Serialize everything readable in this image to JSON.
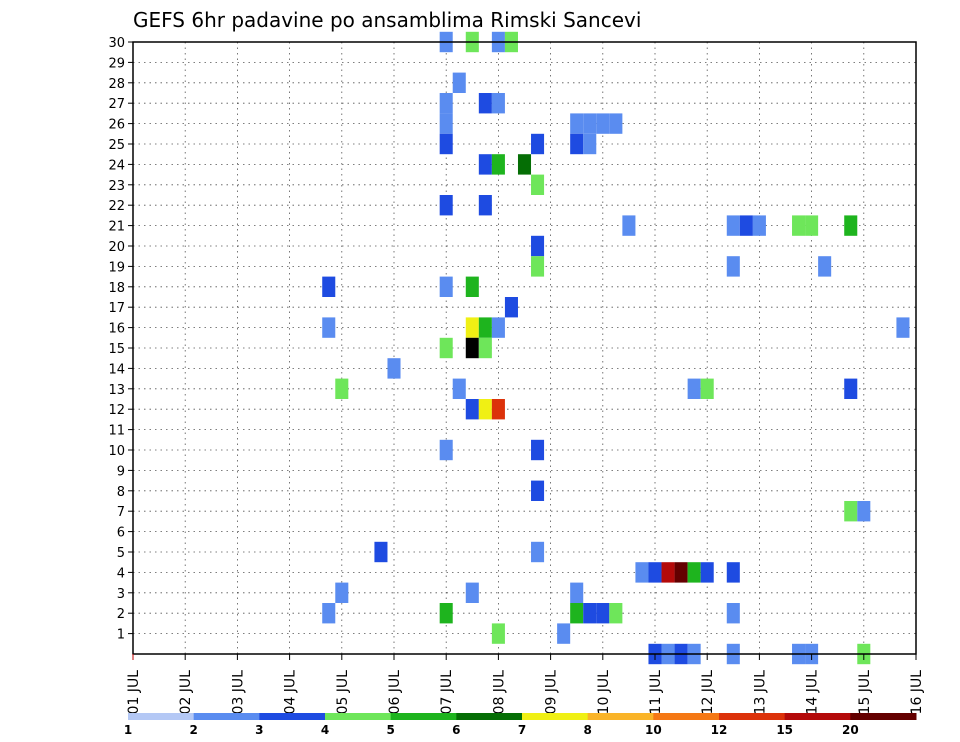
{
  "chart_data": {
    "type": "heatmap",
    "title": "GEFS 6hr padavine po ansamblima Rimski Sancevi",
    "x_tick_labels": [
      "01 JUL",
      "02 JUL",
      "03 JUL",
      "04 JUL",
      "05 JUL",
      "06 JUL",
      "07 JUL",
      "08 JUL",
      "09 JUL",
      "10 JUL",
      "11 JUL",
      "12 JUL",
      "13 JUL",
      "14 JUL",
      "15 JUL",
      "16 JUL"
    ],
    "xlim": [
      1,
      16
    ],
    "y_tick_labels": [
      "1",
      "2",
      "3",
      "4",
      "5",
      "6",
      "7",
      "8",
      "9",
      "10",
      "11",
      "12",
      "13",
      "14",
      "15",
      "16",
      "17",
      "18",
      "19",
      "20",
      "21",
      "22",
      "23",
      "24",
      "25",
      "26",
      "27",
      "28",
      "29",
      "30"
    ],
    "ylim": [
      0,
      30
    ],
    "grid": true,
    "colorbar": {
      "labels": [
        "1",
        "2",
        "3",
        "4",
        "5",
        "6",
        "7",
        "8",
        "10",
        "12",
        "15",
        "20"
      ],
      "colors": [
        "#b4c8f5",
        "#5a8cf0",
        "#1e4be1",
        "#6ee65a",
        "#1eb41e",
        "#056e05",
        "#f0f014",
        "#fab428",
        "#f57814",
        "#dc320a",
        "#b40a0a",
        "#640000"
      ]
    },
    "cells": [
      {
        "t": 7.0,
        "m": 30,
        "v": 1
      },
      {
        "t": 7.5,
        "m": 30,
        "v": 3
      },
      {
        "t": 8.0,
        "m": 30,
        "v": 1
      },
      {
        "t": 8.25,
        "m": 30,
        "v": 3
      },
      {
        "t": 7.25,
        "m": 28,
        "v": 1
      },
      {
        "t": 7.0,
        "m": 27,
        "v": 1
      },
      {
        "t": 7.75,
        "m": 27,
        "v": 2
      },
      {
        "t": 8.0,
        "m": 27,
        "v": 1
      },
      {
        "t": 7.0,
        "m": 26,
        "v": 1
      },
      {
        "t": 9.5,
        "m": 26,
        "v": 1
      },
      {
        "t": 9.75,
        "m": 26,
        "v": 1
      },
      {
        "t": 10.0,
        "m": 26,
        "v": 1
      },
      {
        "t": 10.25,
        "m": 26,
        "v": 1
      },
      {
        "t": 7.0,
        "m": 25,
        "v": 2
      },
      {
        "t": 8.75,
        "m": 25,
        "v": 2
      },
      {
        "t": 9.5,
        "m": 25,
        "v": 2
      },
      {
        "t": 9.75,
        "m": 25,
        "v": 1
      },
      {
        "t": 7.75,
        "m": 24,
        "v": 2
      },
      {
        "t": 8.0,
        "m": 24,
        "v": 4
      },
      {
        "t": 8.5,
        "m": 24,
        "v": 5
      },
      {
        "t": 8.75,
        "m": 23,
        "v": 3
      },
      {
        "t": 7.0,
        "m": 22,
        "v": 2
      },
      {
        "t": 7.75,
        "m": 22,
        "v": 2
      },
      {
        "t": 10.5,
        "m": 21,
        "v": 1
      },
      {
        "t": 12.5,
        "m": 21,
        "v": 1
      },
      {
        "t": 12.75,
        "m": 21,
        "v": 2
      },
      {
        "t": 13.0,
        "m": 21,
        "v": 1
      },
      {
        "t": 13.75,
        "m": 21,
        "v": 3
      },
      {
        "t": 14.0,
        "m": 21,
        "v": 3
      },
      {
        "t": 14.75,
        "m": 21,
        "v": 4
      },
      {
        "t": 8.75,
        "m": 20,
        "v": 2
      },
      {
        "t": 8.75,
        "m": 19,
        "v": 3
      },
      {
        "t": 12.5,
        "m": 19,
        "v": 1
      },
      {
        "t": 14.25,
        "m": 19,
        "v": 1
      },
      {
        "t": 4.75,
        "m": 18,
        "v": 2
      },
      {
        "t": 7.0,
        "m": 18,
        "v": 1
      },
      {
        "t": 7.5,
        "m": 18,
        "v": 4
      },
      {
        "t": 8.25,
        "m": 17,
        "v": 2
      },
      {
        "t": 4.75,
        "m": 16,
        "v": 1
      },
      {
        "t": 7.5,
        "m": 16,
        "v": 6
      },
      {
        "t": 7.75,
        "m": 16,
        "v": 4
      },
      {
        "t": 8.0,
        "m": 16,
        "v": 1
      },
      {
        "t": 15.75,
        "m": 16,
        "v": 1
      },
      {
        "t": 7.0,
        "m": 15,
        "v": 3
      },
      {
        "t": 7.5,
        "m": 15,
        "v": 12
      },
      {
        "t": 7.75,
        "m": 15,
        "v": 3
      },
      {
        "t": 6.0,
        "m": 14,
        "v": 1
      },
      {
        "t": 5.0,
        "m": 13,
        "v": 3
      },
      {
        "t": 7.25,
        "m": 13,
        "v": 1
      },
      {
        "t": 11.75,
        "m": 13,
        "v": 1
      },
      {
        "t": 12.0,
        "m": 13,
        "v": 3
      },
      {
        "t": 14.75,
        "m": 13,
        "v": 2
      },
      {
        "t": 7.5,
        "m": 12,
        "v": 2
      },
      {
        "t": 7.75,
        "m": 12,
        "v": 6
      },
      {
        "t": 8.0,
        "m": 12,
        "v": 9
      },
      {
        "t": 7.0,
        "m": 10,
        "v": 1
      },
      {
        "t": 8.75,
        "m": 10,
        "v": 2
      },
      {
        "t": 8.75,
        "m": 8,
        "v": 2
      },
      {
        "t": 14.75,
        "m": 7,
        "v": 3
      },
      {
        "t": 15.0,
        "m": 7,
        "v": 1
      },
      {
        "t": 5.75,
        "m": 5,
        "v": 2
      },
      {
        "t": 8.75,
        "m": 5,
        "v": 1
      },
      {
        "t": 10.75,
        "m": 4,
        "v": 1
      },
      {
        "t": 11.0,
        "m": 4,
        "v": 2
      },
      {
        "t": 11.25,
        "m": 4,
        "v": 10
      },
      {
        "t": 11.5,
        "m": 4,
        "v": 11
      },
      {
        "t": 11.75,
        "m": 4,
        "v": 4
      },
      {
        "t": 12.0,
        "m": 4,
        "v": 2
      },
      {
        "t": 12.5,
        "m": 4,
        "v": 2
      },
      {
        "t": 5.0,
        "m": 3,
        "v": 1
      },
      {
        "t": 7.5,
        "m": 3,
        "v": 1
      },
      {
        "t": 9.5,
        "m": 3,
        "v": 1
      },
      {
        "t": 4.75,
        "m": 2,
        "v": 1
      },
      {
        "t": 7.0,
        "m": 2,
        "v": 4
      },
      {
        "t": 9.5,
        "m": 2,
        "v": 4
      },
      {
        "t": 9.75,
        "m": 2,
        "v": 2
      },
      {
        "t": 10.0,
        "m": 2,
        "v": 2
      },
      {
        "t": 10.25,
        "m": 2,
        "v": 3
      },
      {
        "t": 12.5,
        "m": 2,
        "v": 1
      },
      {
        "t": 8.0,
        "m": 1,
        "v": 3
      },
      {
        "t": 9.25,
        "m": 1,
        "v": 1
      },
      {
        "t": 11.0,
        "m": 0,
        "v": 2
      },
      {
        "t": 11.25,
        "m": 0,
        "v": 1
      },
      {
        "t": 11.5,
        "m": 0,
        "v": 2
      },
      {
        "t": 11.75,
        "m": 0,
        "v": 1
      },
      {
        "t": 12.5,
        "m": 0,
        "v": 1
      },
      {
        "t": 13.75,
        "m": 0,
        "v": 1
      },
      {
        "t": 14.0,
        "m": 0,
        "v": 1
      },
      {
        "t": 15.0,
        "m": 0,
        "v": 3
      }
    ]
  }
}
